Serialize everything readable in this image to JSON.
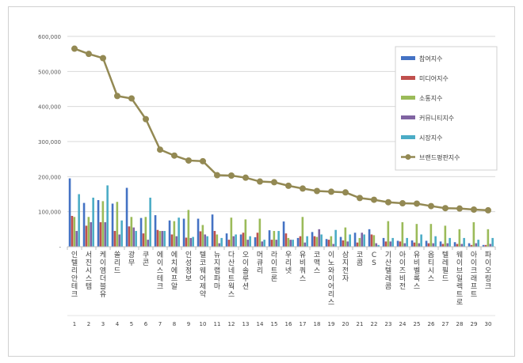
{
  "chart_data": {
    "type": "bar",
    "title": "",
    "xlabel": "",
    "ylabel": "",
    "ylim": [
      0,
      600000
    ],
    "yticks": [
      0,
      100000,
      200000,
      300000,
      400000,
      500000,
      600000
    ],
    "ytick_labels": [
      "-",
      "100,000",
      "200,000",
      "300,000",
      "400,000",
      "500,000",
      "600,000"
    ],
    "grid": "horizontal",
    "legend_position": "top-right",
    "categories": [
      "인텔리안테크",
      "서진시스템",
      "케이엠더블유",
      "쏠리드",
      "광무",
      "쿠콘",
      "에이스테크",
      "에치에프알",
      "인성정보",
      "텔코웨어제약",
      "뉴지랩파마",
      "다산네트웍스",
      "오이솔루션",
      "머큐리",
      "라이트론",
      "우리넷",
      "유비쿼스",
      "코맥스",
      "이노와이어리스",
      "삼지전자",
      "코콤",
      "CS",
      "기산텔레콤",
      "아이즈비전",
      "유비벨록스",
      "옵티시스",
      "텔레필드",
      "웨이브일렉트로",
      "아이크래프트",
      "파이오링크"
    ],
    "category_numbers": [
      "1",
      "2",
      "3",
      "4",
      "5",
      "6",
      "7",
      "8",
      "9",
      "10",
      "11",
      "12",
      "13",
      "14",
      "15",
      "16",
      "17",
      "18",
      "19",
      "20",
      "21",
      "22",
      "23",
      "24",
      "25",
      "26",
      "27",
      "28",
      "29",
      "30"
    ],
    "series": [
      {
        "name": "참여지수",
        "type": "bar",
        "color": "#4472c4",
        "values": [
          195000,
          125000,
          133000,
          123000,
          168000,
          82000,
          90000,
          75000,
          80000,
          80000,
          92000,
          38000,
          35000,
          27000,
          47000,
          72000,
          25000,
          42000,
          22000,
          28000,
          40000,
          50000,
          25000,
          17000,
          18000,
          17000,
          15000,
          13000,
          10000,
          5000
        ]
      },
      {
        "name": "미디어지수",
        "type": "bar",
        "color": "#c0504d",
        "values": [
          88000,
          60000,
          70000,
          45000,
          58000,
          38000,
          48000,
          35000,
          26000,
          44000,
          45000,
          20000,
          40000,
          40000,
          20000,
          38000,
          30000,
          30000,
          20000,
          18000,
          12000,
          35000,
          15000,
          15000,
          12000,
          10000,
          8000,
          8000,
          5000,
          5000
        ]
      },
      {
        "name": "소통지수",
        "type": "bar",
        "color": "#9bbb59",
        "values": [
          85000,
          85000,
          130000,
          128000,
          85000,
          85000,
          45000,
          73000,
          105000,
          62000,
          35000,
          83000,
          78000,
          80000,
          45000,
          25000,
          85000,
          28000,
          30000,
          55000,
          25000,
          33000,
          73000,
          70000,
          65000,
          65000,
          60000,
          50000,
          70000,
          50000
        ]
      },
      {
        "name": "커뮤니티지수",
        "type": "bar",
        "color": "#8064a2",
        "values": [
          45000,
          70000,
          70000,
          35000,
          55000,
          20000,
          45000,
          30000,
          25000,
          35000,
          10000,
          30000,
          20000,
          15000,
          20000,
          20000,
          12000,
          50000,
          8000,
          15000,
          40000,
          10000,
          15000,
          10000,
          10000,
          10000,
          10000,
          8000,
          10000,
          8000
        ]
      },
      {
        "name": "시장지수",
        "type": "bar",
        "color": "#4bacc6",
        "values": [
          150000,
          140000,
          175000,
          75000,
          45000,
          140000,
          45000,
          83000,
          28000,
          30000,
          25000,
          35000,
          30000,
          20000,
          45000,
          20000,
          30000,
          35000,
          48000,
          35000,
          35000,
          5000,
          25000,
          25000,
          35000,
          30000,
          25000,
          25000,
          20000,
          25000
        ]
      },
      {
        "name": "브랜드평판지수",
        "type": "line",
        "color": "#938953",
        "values": [
          565000,
          550000,
          538000,
          430000,
          423000,
          364000,
          277000,
          260000,
          246000,
          244000,
          204000,
          203000,
          197000,
          186000,
          184000,
          174000,
          166000,
          159000,
          157000,
          155000,
          139000,
          134000,
          127000,
          124000,
          123000,
          116000,
          110000,
          109000,
          106000,
          104000
        ]
      }
    ]
  }
}
